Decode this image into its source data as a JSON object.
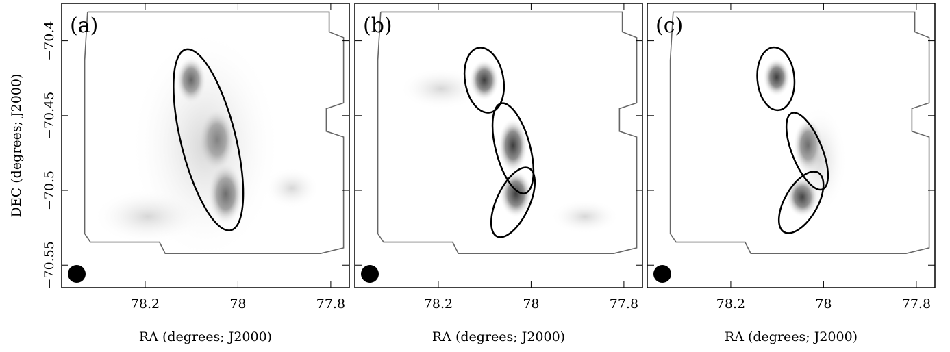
{
  "chart_data": [
    {
      "type": "image",
      "label": "(a)",
      "xlabel": "RA (degrees; J2000)",
      "ylabel": "DEC (degrees; J2000)",
      "xlim": [
        78.38,
        77.76
      ],
      "xticks": [
        78.2,
        78,
        77.8
      ],
      "ylim": [
        -70.565,
        -70.375
      ],
      "yticks": [
        {
          "value": -70.4,
          "label": "−70.4"
        },
        {
          "value": -70.45,
          "label": "−70.45"
        },
        {
          "value": -70.5,
          "label": "−70.5"
        },
        {
          "value": -70.55,
          "label": "−70.55"
        }
      ]
    },
    {
      "type": "image",
      "label": "(b)",
      "xlabel": "RA (degrees; J2000)",
      "xlim": [
        78.38,
        77.76
      ],
      "xticks": [
        78.2,
        78,
        77.8
      ],
      "ylim": [
        -70.565,
        -70.375
      ],
      "yticks": [
        -70.4,
        -70.45,
        -70.5,
        -70.55
      ]
    },
    {
      "type": "image",
      "label": "(c)",
      "xlabel": "RA (degrees; J2000)",
      "xlim": [
        78.38,
        77.76
      ],
      "xticks": [
        78.2,
        78,
        77.8
      ],
      "ylim": [
        -70.565,
        -70.375
      ],
      "yticks": [
        -70.4,
        -70.45,
        -70.5,
        -70.55
      ]
    }
  ]
}
